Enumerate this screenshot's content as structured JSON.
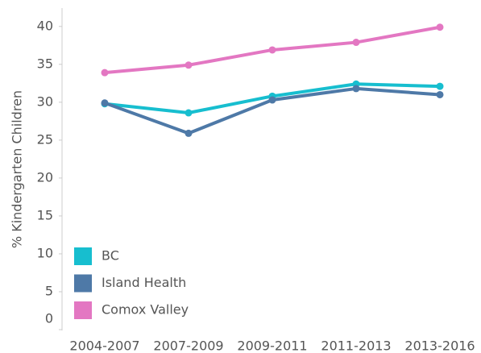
{
  "chart_data": {
    "type": "line",
    "y_label": "% Kindergarten Children",
    "categories": [
      "2004-2007",
      "2007-2009",
      "2009-2011",
      "2011-2013",
      "2013-2016"
    ],
    "series": [
      {
        "name": "BC",
        "color": "#17becf",
        "values": [
          29.8,
          28.6,
          30.8,
          32.4,
          32.1
        ]
      },
      {
        "name": "Island Health",
        "color": "#4e79a7",
        "values": [
          29.9,
          25.9,
          30.3,
          31.8,
          31.0
        ]
      },
      {
        "name": "Comox Valley",
        "color": "#e377c2",
        "values": [
          33.9,
          34.9,
          36.9,
          37.9,
          39.9
        ]
      }
    ],
    "ylim": [
      0,
      42
    ],
    "yticks": [
      0,
      5,
      10,
      15,
      20,
      25,
      30,
      35,
      40
    ],
    "grid": false,
    "legend": "lower left"
  }
}
